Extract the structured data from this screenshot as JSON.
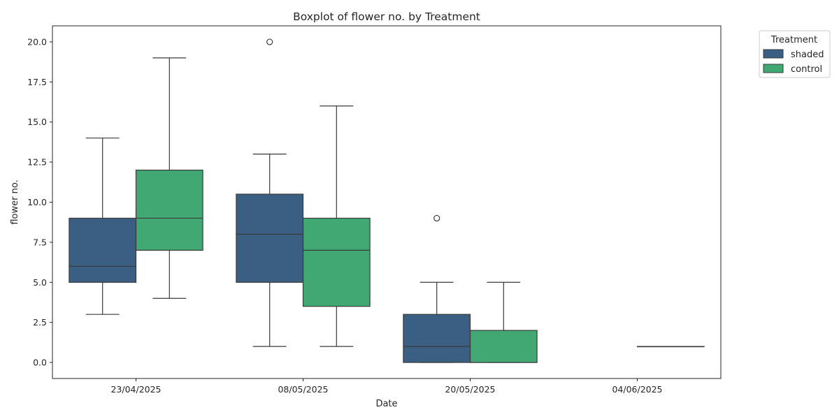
{
  "chart_data": {
    "type": "boxplot",
    "title": "Boxplot of flower no. by Treatment",
    "xlabel": "Date",
    "ylabel": "flower no.",
    "ylim": [
      -1,
      21
    ],
    "yticks": [
      "0.0",
      "2.5",
      "5.0",
      "7.5",
      "10.0",
      "12.5",
      "15.0",
      "17.5",
      "20.0"
    ],
    "ytick_values": [
      0,
      2.5,
      5,
      7.5,
      10,
      12.5,
      15,
      17.5,
      20
    ],
    "categories": [
      "23/04/2025",
      "08/05/2025",
      "20/05/2025",
      "04/06/2025"
    ],
    "grid": false,
    "legend": {
      "title": "Treatment",
      "placement": "outside-top-right"
    },
    "series": [
      {
        "name": "shaded",
        "color": "#3b5f82",
        "boxes": [
          {
            "whislo": 3,
            "q1": 5,
            "med": 6,
            "q3": 9,
            "whishi": 14,
            "fliers": []
          },
          {
            "whislo": 1,
            "q1": 5,
            "med": 8,
            "q3": 10.5,
            "whishi": 13,
            "fliers": [
              20
            ]
          },
          {
            "whislo": 0,
            "q1": 0,
            "med": 1,
            "q3": 3,
            "whishi": 5,
            "fliers": [
              9
            ]
          },
          null
        ]
      },
      {
        "name": "control",
        "color": "#41a873",
        "boxes": [
          {
            "whislo": 4,
            "q1": 7,
            "med": 9,
            "q3": 12,
            "whishi": 19,
            "fliers": []
          },
          {
            "whislo": 1,
            "q1": 3.5,
            "med": 7,
            "q3": 9,
            "whishi": 16,
            "fliers": []
          },
          {
            "whislo": 0,
            "q1": 0,
            "med": 0,
            "q3": 2,
            "whishi": 5,
            "fliers": []
          },
          {
            "whislo": 1,
            "q1": 1,
            "med": 1,
            "q3": 1,
            "whishi": 1,
            "fliers": []
          }
        ]
      }
    ]
  }
}
